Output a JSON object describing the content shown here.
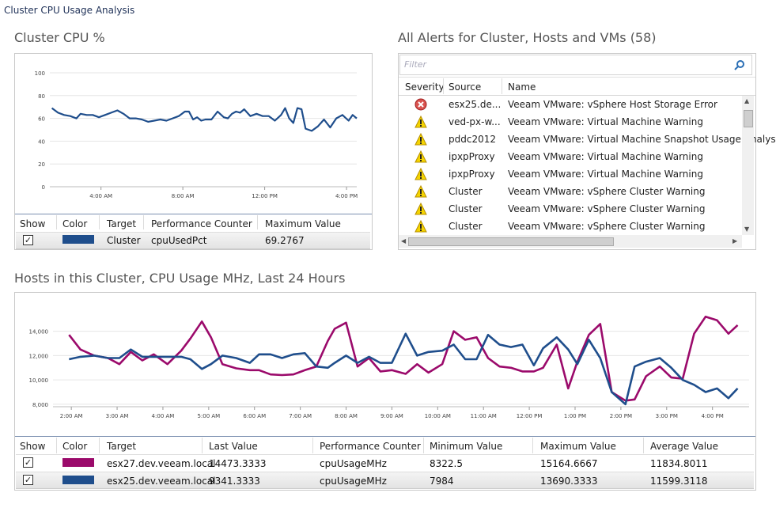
{
  "window": {
    "title": "Cluster CPU Usage Analysis"
  },
  "cluster_cpu": {
    "title": "Cluster CPU %",
    "table": {
      "headers": [
        "Show",
        "Color",
        "Target",
        "Performance Counter",
        "Maximum Value"
      ],
      "rows": [
        {
          "show": true,
          "color": "#1f4e8c",
          "target": "Cluster",
          "counter": "cpuUsedPct",
          "max": "69.2767"
        }
      ]
    }
  },
  "alerts": {
    "title": "All Alerts for Cluster, Hosts and VMs (58)",
    "filter_placeholder": "Filter",
    "headers": [
      "Severity",
      "Source",
      "Name"
    ],
    "rows": [
      {
        "severity": "error",
        "source": "esx25.de...",
        "name": "Veeam VMware: vSphere Host Storage Error"
      },
      {
        "severity": "warning",
        "source": "ved-px-w...",
        "name": "Veeam VMware: Virtual Machine Warning"
      },
      {
        "severity": "warning",
        "source": "pddc2012",
        "name": "Veeam VMware: Virtual Machine Snapshot Usage Analys"
      },
      {
        "severity": "warning",
        "source": "ipxpProxy",
        "name": "Veeam VMware: Virtual Machine Warning"
      },
      {
        "severity": "warning",
        "source": "ipxpProxy",
        "name": "Veeam VMware: Virtual Machine Warning"
      },
      {
        "severity": "warning",
        "source": "Cluster",
        "name": "Veeam VMware: vSphere Cluster Warning"
      },
      {
        "severity": "warning",
        "source": "Cluster",
        "name": "Veeam VMware: vSphere Cluster Warning"
      },
      {
        "severity": "warning",
        "source": "Cluster",
        "name": "Veeam VMware: vSphere Cluster Warning"
      }
    ]
  },
  "hosts": {
    "title": "Hosts in this Cluster, CPU Usage MHz, Last 24 Hours",
    "table": {
      "headers": [
        "Show",
        "Color",
        "Target",
        "Last Value",
        "Performance Counter",
        "Minimum Value",
        "Maximum Value",
        "Average Value"
      ],
      "rows": [
        {
          "show": true,
          "color": "#9b0a6b",
          "target": "esx27.dev.veeam.local",
          "last": "14473.3333",
          "counter": "cpuUsageMHz",
          "min": "8322.5",
          "max": "15164.6667",
          "avg": "11834.8011"
        },
        {
          "show": true,
          "color": "#1f4e8c",
          "target": "esx25.dev.veeam.local",
          "last": "9341.3333",
          "counter": "cpuUsageMHz",
          "min": "7984",
          "max": "13690.3333",
          "avg": "11599.3118"
        }
      ]
    }
  },
  "chart_data": [
    {
      "type": "line",
      "title": "Cluster CPU %",
      "ylim": [
        0,
        100
      ],
      "yticks": [
        "0",
        "20",
        "40",
        "60",
        "80",
        "100"
      ],
      "xticks": [
        {
          "x": 4.0,
          "label": "4:00 AM"
        },
        {
          "x": 8.0,
          "label": "8:00 AM"
        },
        {
          "x": 12.0,
          "label": "12:00 PM"
        },
        {
          "x": 16.0,
          "label": "4:00 PM"
        }
      ],
      "xlim": [
        1.5,
        16.5
      ],
      "series": [
        {
          "name": "Cluster",
          "color": "#1f4e8c",
          "x": [
            1.6,
            1.9,
            2.2,
            2.5,
            2.8,
            3.0,
            3.3,
            3.6,
            3.9,
            4.2,
            4.5,
            4.8,
            5.1,
            5.4,
            5.7,
            6.0,
            6.3,
            6.6,
            6.9,
            7.2,
            7.5,
            7.8,
            8.1,
            8.3,
            8.5,
            8.7,
            8.9,
            9.1,
            9.4,
            9.7,
            10.0,
            10.2,
            10.4,
            10.6,
            10.8,
            11.0,
            11.3,
            11.6,
            11.9,
            12.2,
            12.5,
            12.8,
            13.0,
            13.2,
            13.4,
            13.6,
            13.8,
            14.0,
            14.3,
            14.6,
            14.9,
            15.2,
            15.5,
            15.8,
            16.1,
            16.3,
            16.5
          ],
          "y": [
            69,
            65,
            63,
            62,
            60,
            64,
            63,
            63,
            61,
            63,
            65,
            67,
            64,
            60,
            60,
            59,
            57,
            58,
            59,
            58,
            60,
            62,
            66,
            66,
            59,
            61,
            58,
            59,
            59,
            66,
            61,
            60,
            64,
            66,
            65,
            68,
            62,
            64,
            62,
            62,
            58,
            63,
            69,
            60,
            56,
            69,
            68,
            51,
            49,
            53,
            59,
            52,
            60,
            63,
            58,
            63,
            60
          ]
        }
      ]
    },
    {
      "type": "line",
      "title": "Hosts in this Cluster, CPU Usage MHz, Last 24 Hours",
      "ylim": [
        7800,
        15600
      ],
      "yticks": [
        "8,000",
        "10,000",
        "12,000",
        "14,000"
      ],
      "xticks": [
        {
          "x": 2.0,
          "label": "2:00 AM"
        },
        {
          "x": 3.0,
          "label": "3:00 AM"
        },
        {
          "x": 4.0,
          "label": "4:00 AM"
        },
        {
          "x": 5.0,
          "label": "5:00 AM"
        },
        {
          "x": 6.0,
          "label": "6:00 AM"
        },
        {
          "x": 7.0,
          "label": "7:00 AM"
        },
        {
          "x": 8.0,
          "label": "8:00 AM"
        },
        {
          "x": 9.0,
          "label": "9:00 AM"
        },
        {
          "x": 10.0,
          "label": "10:00 AM"
        },
        {
          "x": 11.0,
          "label": "11:00 AM"
        },
        {
          "x": 12.0,
          "label": "12:00 PM"
        },
        {
          "x": 13.0,
          "label": "1:00 PM"
        },
        {
          "x": 14.0,
          "label": "2:00 PM"
        },
        {
          "x": 15.0,
          "label": "3:00 PM"
        },
        {
          "x": 16.0,
          "label": "4:00 PM"
        }
      ],
      "xlim": [
        1.6,
        16.8
      ],
      "series": [
        {
          "name": "esx27.dev.veeam.local",
          "color": "#9b0a6b",
          "x": [
            1.95,
            2.2,
            2.5,
            2.8,
            3.05,
            3.3,
            3.55,
            3.8,
            4.1,
            4.4,
            4.6,
            4.85,
            5.05,
            5.3,
            5.6,
            5.9,
            6.1,
            6.35,
            6.6,
            6.85,
            7.1,
            7.35,
            7.6,
            7.75,
            8.0,
            8.25,
            8.5,
            8.75,
            9.0,
            9.3,
            9.55,
            9.8,
            10.1,
            10.35,
            10.6,
            10.85,
            11.1,
            11.35,
            11.6,
            11.85,
            12.1,
            12.3,
            12.6,
            12.85,
            13.05,
            13.3,
            13.55,
            13.8,
            14.1,
            14.3,
            14.55,
            14.85,
            15.1,
            15.35,
            15.6,
            15.85,
            16.1,
            16.35,
            16.55
          ],
          "y": [
            13700,
            12500,
            12000,
            11800,
            11300,
            12300,
            11600,
            12100,
            11300,
            12400,
            13400,
            14800,
            13500,
            11300,
            10950,
            10800,
            10800,
            10450,
            10400,
            10450,
            10800,
            11100,
            13200,
            14200,
            14700,
            11100,
            11800,
            10700,
            10800,
            10500,
            11300,
            10600,
            11300,
            14000,
            13300,
            13500,
            11800,
            11100,
            11000,
            10700,
            10700,
            11000,
            12900,
            9300,
            11500,
            13700,
            14600,
            9000,
            8300,
            8400,
            10300,
            11100,
            10200,
            10100,
            13800,
            15200,
            14900,
            13800,
            14500
          ]
        },
        {
          "name": "esx25.dev.veeam.local",
          "color": "#1f4e8c",
          "x": [
            1.95,
            2.2,
            2.5,
            2.8,
            3.05,
            3.3,
            3.55,
            3.8,
            4.1,
            4.4,
            4.6,
            4.85,
            5.05,
            5.3,
            5.6,
            5.9,
            6.1,
            6.35,
            6.6,
            6.85,
            7.1,
            7.35,
            7.6,
            7.75,
            8.0,
            8.25,
            8.5,
            8.75,
            9.0,
            9.3,
            9.55,
            9.8,
            10.1,
            10.35,
            10.6,
            10.85,
            11.1,
            11.35,
            11.6,
            11.85,
            12.1,
            12.3,
            12.6,
            12.85,
            13.05,
            13.3,
            13.55,
            13.8,
            14.1,
            14.3,
            14.55,
            14.85,
            15.1,
            15.35,
            15.6,
            15.85,
            16.1,
            16.35,
            16.55
          ],
          "y": [
            11700,
            11900,
            12000,
            11800,
            11800,
            12500,
            11900,
            11900,
            11900,
            11900,
            11700,
            10900,
            11300,
            12000,
            11800,
            11400,
            12100,
            12100,
            11800,
            12100,
            12200,
            11100,
            11000,
            11400,
            12000,
            11400,
            11900,
            11400,
            11400,
            13800,
            12000,
            12300,
            12400,
            12900,
            11700,
            11700,
            13700,
            12900,
            12700,
            12900,
            11200,
            12600,
            13500,
            12500,
            11300,
            13300,
            11800,
            9000,
            8000,
            11100,
            11500,
            11800,
            11000,
            10000,
            9600,
            9000,
            9300,
            8500,
            9300
          ]
        }
      ]
    }
  ]
}
